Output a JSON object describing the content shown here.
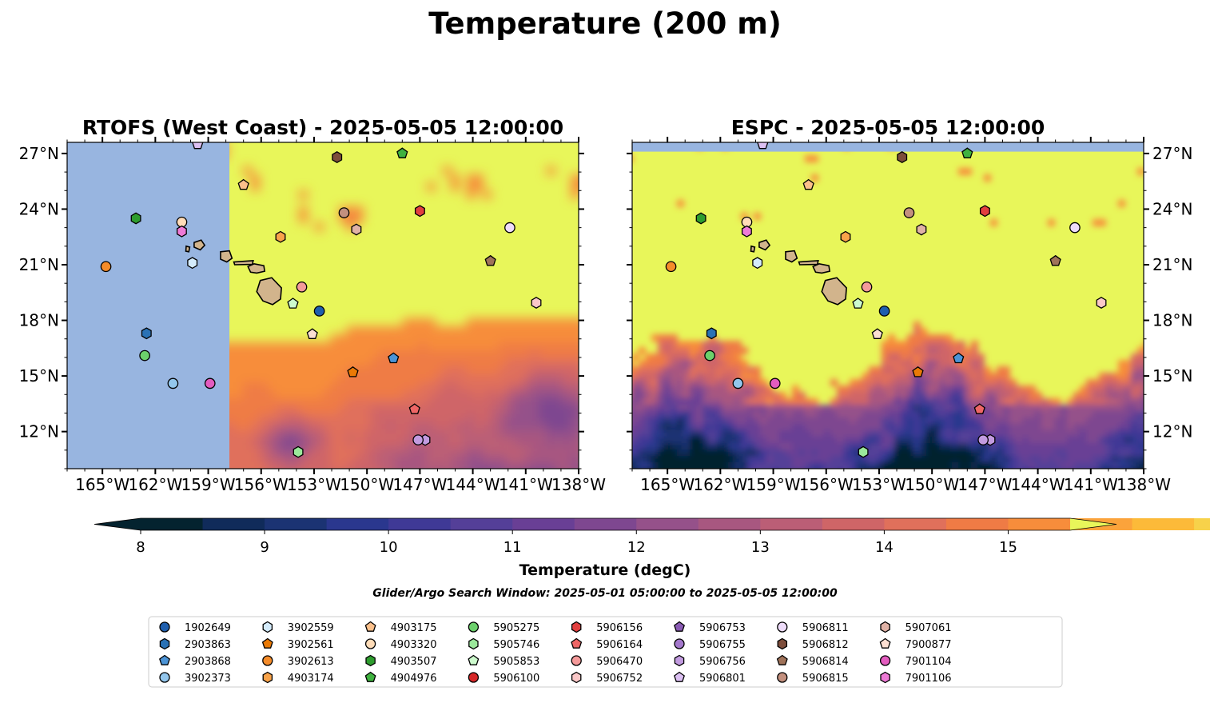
{
  "figure": {
    "suptitle": "Temperature (200 m)",
    "search_window": "Glider/Argo Search Window: 2025-05-01 05:00:00 to 2025-05-05 12:00:00"
  },
  "chart_data": [
    {
      "type": "heatmap",
      "title": "RTOFS (West Coast) - 2025-05-05 12:00:00",
      "x_range": [
        -167,
        -138
      ],
      "y_range": [
        10,
        27.6
      ],
      "x_ticks": [
        "165°W",
        "162°W",
        "159°W",
        "156°W",
        "153°W",
        "150°W",
        "147°W",
        "144°W",
        "141°W",
        "138°W"
      ],
      "y_ticks": [
        "12°N",
        "15°N",
        "18°N",
        "21°N",
        "24°N",
        "27°N"
      ],
      "y_axis_side": "left",
      "no_data_region": {
        "lon_max": -157.8,
        "color": "#98b5e0"
      },
      "dominant_value_degC": "above 15.5",
      "cooler_region_note": "10–13 degC patches south of 18°N and east of 147°W"
    },
    {
      "type": "heatmap",
      "title": "ESPC - 2025-05-05 12:00:00",
      "x_range": [
        -167,
        -138
      ],
      "y_range": [
        10,
        27.6
      ],
      "x_ticks": [
        "165°W",
        "162°W",
        "159°W",
        "156°W",
        "153°W",
        "150°W",
        "147°W",
        "144°W",
        "141°W",
        "138°W"
      ],
      "y_ticks": [
        "12°N",
        "15°N",
        "18°N",
        "21°N",
        "24°N",
        "27°N"
      ],
      "y_axis_side": "right",
      "no_data_region": {
        "lat_min": 27.1,
        "color": "#98b5e0"
      },
      "dominant_value_degC": "above 15.5",
      "cooler_region_note": "10–12 degC band south of about 14°N"
    }
  ],
  "colorbar": {
    "label": "Temperature (degC)",
    "min": 8,
    "max": 15.5,
    "step": 0.5,
    "ticks": [
      "8",
      "9",
      "10",
      "11",
      "12",
      "13",
      "14",
      "15"
    ],
    "extend": "both",
    "colors": [
      "#04232f",
      "#102b5a",
      "#1b3373",
      "#2a378e",
      "#3f3996",
      "#543f98",
      "#693f95",
      "#7e4790",
      "#95518a",
      "#a85780",
      "#bb5e76",
      "#cf6567",
      "#e0705b",
      "#ef7b45",
      "#f78d3b",
      "#fba33b",
      "#fcba39",
      "#f7d24a",
      "#e8f65a"
    ],
    "under_color": "#04232f",
    "over_color": "#e8f65a"
  },
  "islands": [
    {
      "name": "Hawaii",
      "lon": -155.5,
      "lat": 19.6
    },
    {
      "name": "Maui",
      "lon": -156.3,
      "lat": 20.8
    },
    {
      "name": "Molokai",
      "lon": -157.0,
      "lat": 21.1
    },
    {
      "name": "Oahu",
      "lon": -158.0,
      "lat": 21.45
    },
    {
      "name": "Kauai",
      "lon": -159.5,
      "lat": 22.05
    },
    {
      "name": "Niihau",
      "lon": -160.15,
      "lat": 21.85
    }
  ],
  "floats": [
    {
      "id": "1902649",
      "marker": "circle",
      "color": "#1f5fae",
      "lon": -152.7,
      "lat": 18.5
    },
    {
      "id": "2903863",
      "marker": "hexagon",
      "color": "#2b72b5",
      "lon": -162.5,
      "lat": 17.3
    },
    {
      "id": "2903868",
      "marker": "pentagon",
      "color": "#4c94d6",
      "lon": -148.5,
      "lat": 15.95
    },
    {
      "id": "3902373",
      "marker": "circle",
      "color": "#93c6ec",
      "lon": -161.0,
      "lat": 14.6
    },
    {
      "id": "3902559",
      "marker": "hexagon",
      "color": "#d4ebfb",
      "lon": -159.9,
      "lat": 21.1
    },
    {
      "id": "3902561",
      "marker": "pentagon",
      "color": "#ea7a06",
      "lon": -150.8,
      "lat": 15.2
    },
    {
      "id": "3902613",
      "marker": "circle",
      "color": "#f58c2a",
      "lon": -164.8,
      "lat": 20.9
    },
    {
      "id": "4903174",
      "marker": "hexagon",
      "color": "#f9a34a",
      "lon": -154.9,
      "lat": 22.5
    },
    {
      "id": "4903175",
      "marker": "pentagon",
      "color": "#fbc08b",
      "lon": -157.0,
      "lat": 25.3
    },
    {
      "id": "4903320",
      "marker": "circle",
      "color": "#ffdcb8",
      "lon": -160.5,
      "lat": 23.3
    },
    {
      "id": "4903507",
      "marker": "hexagon",
      "color": "#2e9d2e",
      "lon": -163.1,
      "lat": 23.5
    },
    {
      "id": "4904976",
      "marker": "pentagon",
      "color": "#3fb23f",
      "lon": -148.0,
      "lat": 27.0
    },
    {
      "id": "5905275",
      "marker": "circle",
      "color": "#6cd06c",
      "lon": -162.6,
      "lat": 16.1
    },
    {
      "id": "5905746",
      "marker": "hexagon",
      "color": "#9be89b",
      "lon": -153.9,
      "lat": 10.9
    },
    {
      "id": "5905853",
      "marker": "pentagon",
      "color": "#cdfacd",
      "lon": -154.2,
      "lat": 18.9
    },
    {
      "id": "5906100",
      "marker": "circle",
      "color": "#d62728",
      "lon": null,
      "lat": null
    },
    {
      "id": "5906156",
      "marker": "hexagon",
      "color": "#e23f3f",
      "lon": -147.0,
      "lat": 23.9
    },
    {
      "id": "5906164",
      "marker": "pentagon",
      "color": "#ee6666",
      "lon": -147.3,
      "lat": 13.2
    },
    {
      "id": "5906470",
      "marker": "circle",
      "color": "#f59a9a",
      "lon": -153.7,
      "lat": 19.8
    },
    {
      "id": "5906752",
      "marker": "hexagon",
      "color": "#fbc8c8",
      "lon": -140.4,
      "lat": 18.95
    },
    {
      "id": "5906753",
      "marker": "pentagon",
      "color": "#8a5bb4",
      "lon": null,
      "lat": null
    },
    {
      "id": "5906755",
      "marker": "circle",
      "color": "#a478cc",
      "lon": null,
      "lat": null
    },
    {
      "id": "5906756",
      "marker": "hexagon",
      "color": "#c29be0",
      "lon": -146.7,
      "lat": 11.55
    },
    {
      "id": "5906801",
      "marker": "pentagon",
      "color": "#dcc0f3",
      "lon": -159.6,
      "lat": 27.5
    },
    {
      "id": "5906811",
      "marker": "circle",
      "color": "#eedcfa",
      "lon": -141.9,
      "lat": 23.0
    },
    {
      "id": "5906812",
      "marker": "hexagon",
      "color": "#7d4d3b",
      "lon": -151.7,
      "lat": 26.8
    },
    {
      "id": "5906814",
      "marker": "pentagon",
      "color": "#a0735a",
      "lon": -143.0,
      "lat": 21.2
    },
    {
      "id": "5906815",
      "marker": "circle",
      "color": "#c3907e",
      "lon": -151.3,
      "lat": 23.8
    },
    {
      "id": "5907061",
      "marker": "hexagon",
      "color": "#e0b2a6",
      "lon": -150.6,
      "lat": 22.9
    },
    {
      "id": "7900877",
      "marker": "pentagon",
      "color": "#fcdfd2",
      "lon": -153.1,
      "lat": 17.25
    },
    {
      "id": "7901104",
      "marker": "circle",
      "color": "#e35cbf",
      "lon": -158.9,
      "lat": 14.6
    },
    {
      "id": "7901106",
      "marker": "hexagon",
      "color": "#ee7ad6",
      "lon": -160.5,
      "lat": 22.8
    }
  ],
  "extra_markers": [
    {
      "marker": "circle",
      "color": "#c29be0",
      "lon": -147.1,
      "lat": 11.55
    }
  ]
}
